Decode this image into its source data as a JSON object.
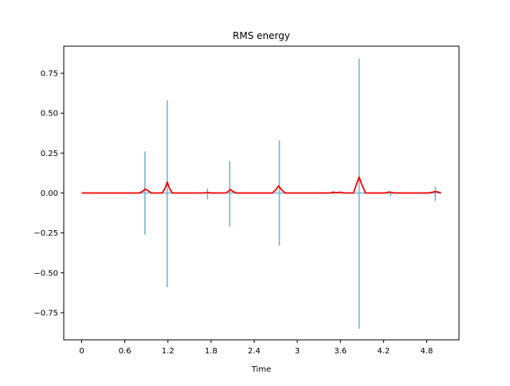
{
  "chart_data": {
    "type": "line",
    "title": "RMS energy",
    "xlabel": "Time",
    "ylabel": "",
    "xlim": [
      -0.25,
      5.25
    ],
    "ylim": [
      -0.92,
      0.92
    ],
    "x_ticks": [
      0,
      0.6,
      1.2,
      1.8,
      2.4,
      3,
      3.6,
      4.2,
      4.8
    ],
    "x_tick_labels": [
      "0",
      "0.6",
      "1.2",
      "1.8",
      "2.4",
      "3",
      "3.6",
      "4.2",
      "4.8"
    ],
    "y_ticks": [
      -0.75,
      -0.5,
      -0.25,
      0,
      0.25,
      0.5,
      0.75
    ],
    "y_tick_labels": [
      "−0.75",
      "−0.50",
      "−0.25",
      "0.00",
      "0.25",
      "0.50",
      "0.75"
    ],
    "grid": false,
    "series": [
      {
        "kind": "waveform",
        "color": "#77b4d4",
        "events": [
          {
            "t": 0.88,
            "max": 0.26,
            "min": -0.26
          },
          {
            "t": 1.19,
            "max": 0.58,
            "min": -0.59
          },
          {
            "t": 1.75,
            "max": 0.03,
            "min": -0.04
          },
          {
            "t": 2.06,
            "max": 0.2,
            "min": -0.21
          },
          {
            "t": 2.75,
            "max": 0.33,
            "min": -0.33
          },
          {
            "t": 3.5,
            "max": 0.01,
            "min": -0.01
          },
          {
            "t": 3.86,
            "max": 0.84,
            "min": -0.85
          },
          {
            "t": 4.3,
            "max": 0.01,
            "min": -0.02
          },
          {
            "t": 4.92,
            "max": 0.04,
            "min": -0.05
          }
        ]
      },
      {
        "kind": "rms",
        "color": "#ff0000",
        "x": [
          0,
          0.8,
          0.85,
          0.88,
          0.92,
          0.97,
          1.12,
          1.16,
          1.19,
          1.22,
          1.26,
          1.7,
          1.75,
          1.8,
          2.0,
          2.04,
          2.07,
          2.1,
          2.15,
          2.65,
          2.7,
          2.74,
          2.78,
          2.83,
          3.45,
          3.5,
          3.55,
          3.6,
          3.65,
          3.78,
          3.82,
          3.86,
          3.9,
          3.95,
          4.22,
          4.28,
          4.35,
          4.82,
          4.88,
          4.93,
          4.97,
          5.0
        ],
        "y": [
          0,
          0,
          0.01,
          0.025,
          0.015,
          0,
          0,
          0.03,
          0.068,
          0.03,
          0,
          0,
          0.003,
          0,
          0,
          0.01,
          0.022,
          0.01,
          0,
          0,
          0.02,
          0.045,
          0.02,
          0,
          0,
          0.005,
          0.002,
          0.005,
          0,
          0,
          0.05,
          0.1,
          0.05,
          0,
          0,
          0.006,
          0,
          0,
          0.005,
          0.01,
          0.004,
          0
        ]
      }
    ]
  }
}
